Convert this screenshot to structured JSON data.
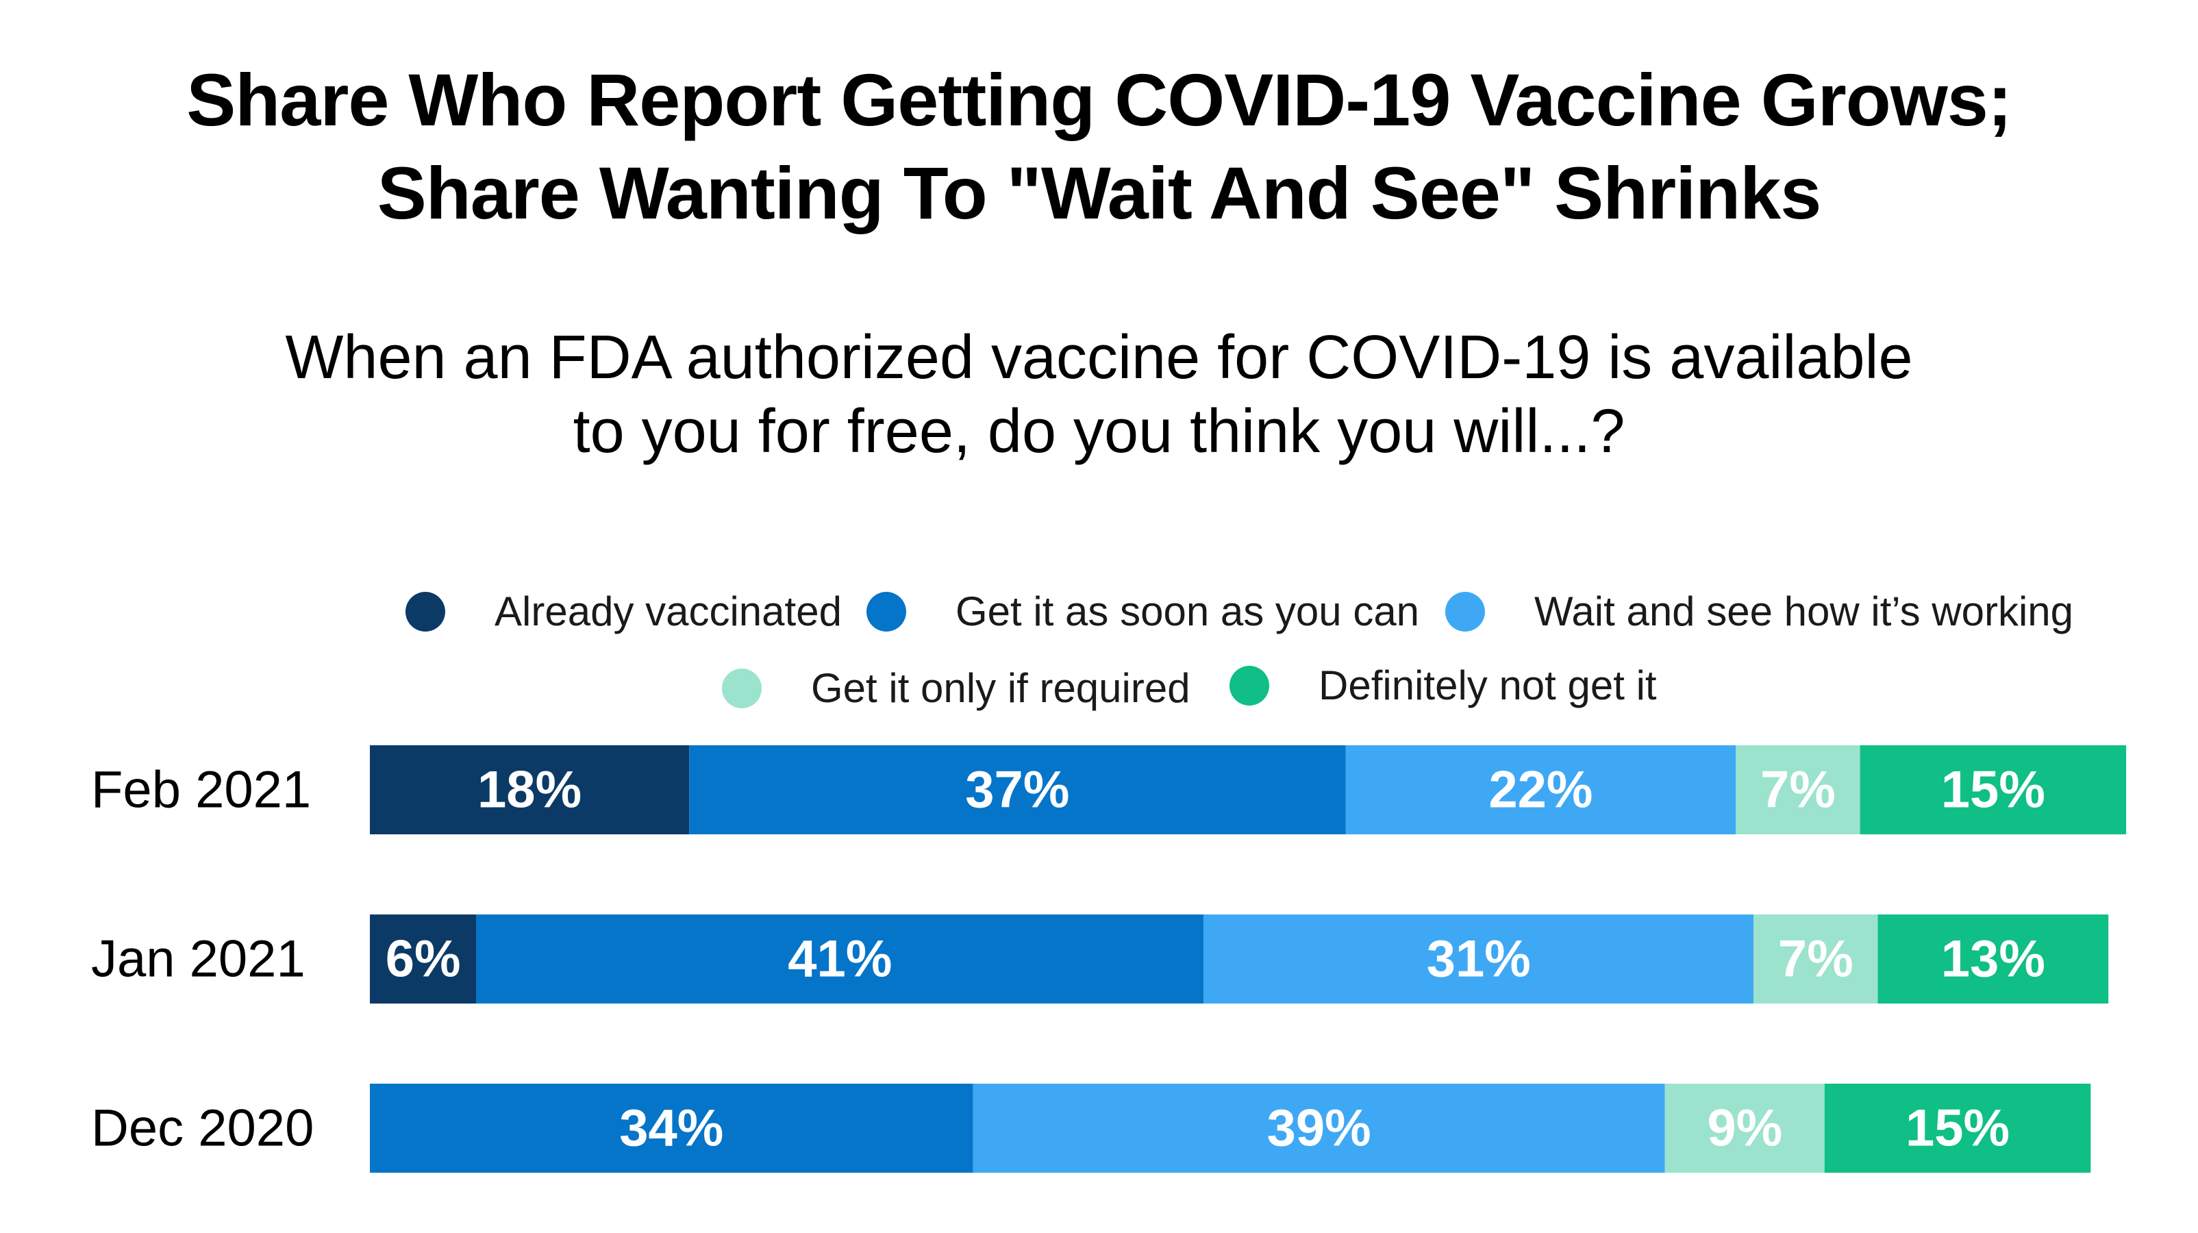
{
  "title_lines": [
    "Share Who Report Getting COVID-19 Vaccine Grows;",
    "Share Wanting To \"Wait And See\" Shrinks"
  ],
  "subtitle_lines": [
    "When an FDA authorized vaccine for COVID-19 is available",
    "to you for free, do you think you will...?"
  ],
  "legend": [
    {
      "label": "Already vaccinated",
      "color": "#0b3a66"
    },
    {
      "label": "Get it as soon as you can",
      "color": "#0575c9"
    },
    {
      "label": "Wait and see how it’s working",
      "color": "#3ea8f5"
    },
    {
      "label": "Get it only if required",
      "color": "#9be3cd"
    },
    {
      "label": "Definitely not get it",
      "color": "#0fbf85"
    }
  ],
  "chart_data": {
    "type": "bar",
    "orientation": "horizontal",
    "stacked": true,
    "categories": [
      "Feb 2021",
      "Jan 2021",
      "Dec 2020"
    ],
    "series": [
      {
        "name": "Already vaccinated",
        "color": "#0b3a66",
        "values": [
          18,
          6,
          0
        ],
        "labels": [
          "18%",
          "6%",
          ""
        ]
      },
      {
        "name": "Get it as soon as you can",
        "color": "#0575c9",
        "values": [
          37,
          41,
          34
        ],
        "labels": [
          "37%",
          "41%",
          "34%"
        ]
      },
      {
        "name": "Wait and see how it’s working",
        "color": "#3ea8f5",
        "values": [
          22,
          31,
          39
        ],
        "labels": [
          "22%",
          "31%",
          "39%"
        ]
      },
      {
        "name": "Get it only if required",
        "color": "#9be3cd",
        "values": [
          7,
          7,
          9
        ],
        "labels": [
          "7%",
          "7%",
          "9%"
        ]
      },
      {
        "name": "Definitely not get it",
        "color": "#0fbf85",
        "values": [
          15,
          13,
          15
        ],
        "labels": [
          "15%",
          "13%",
          "15%"
        ]
      }
    ],
    "xlim": [
      0,
      100
    ],
    "unit": "%",
    "legend_position": "top",
    "grid": false
  }
}
